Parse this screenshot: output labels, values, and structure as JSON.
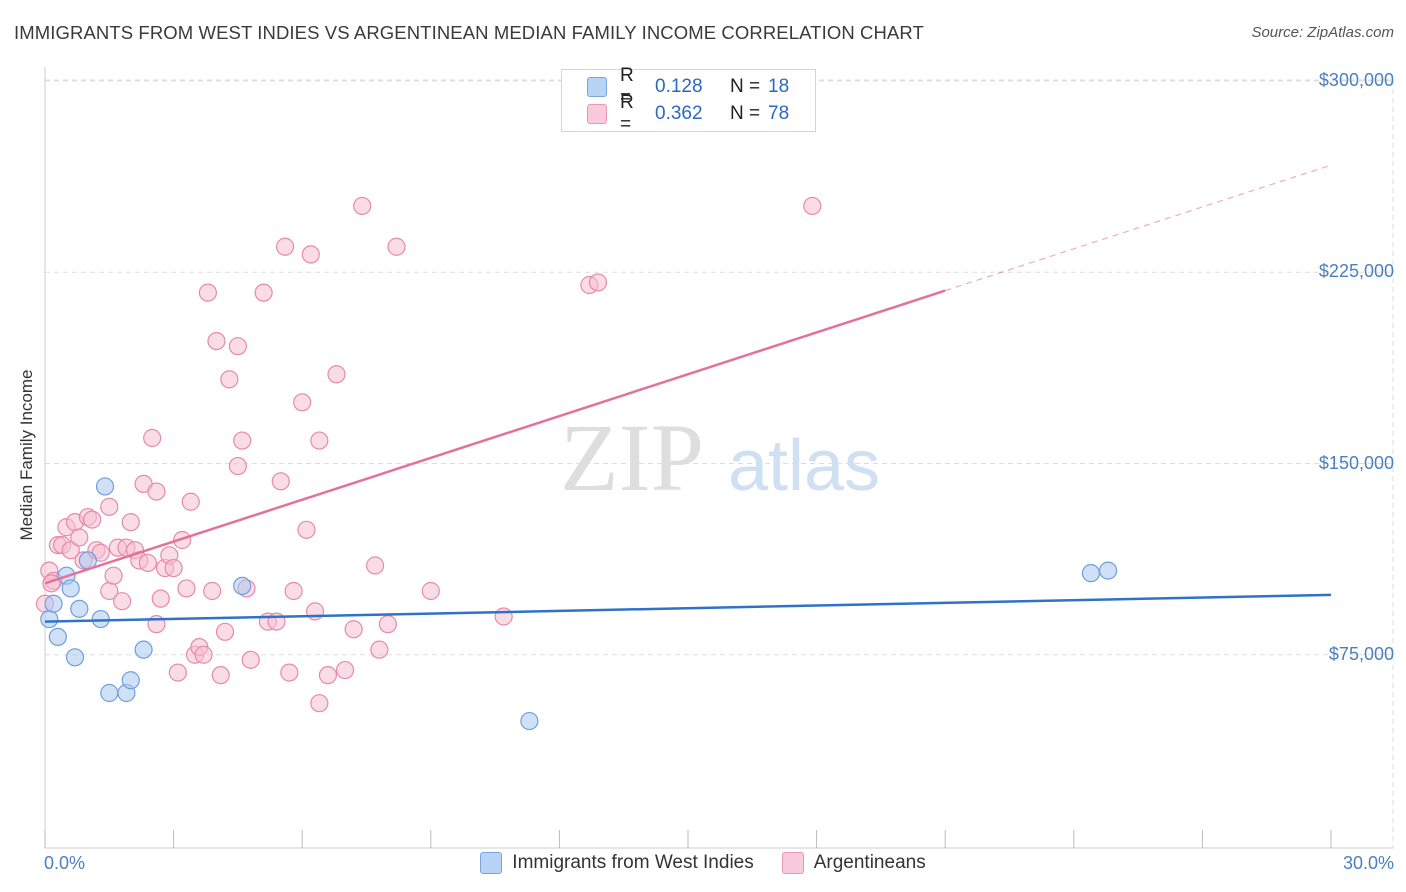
{
  "title": "IMMIGRANTS FROM WEST INDIES VS ARGENTINEAN MEDIAN FAMILY INCOME CORRELATION CHART",
  "source": "Source: ZipAtlas.com",
  "watermark": {
    "zip": "ZIP",
    "atlas": "atlas"
  },
  "legend_top": [
    {
      "r_label": "R =",
      "r_value": "0.128",
      "n_label": "N =",
      "n_value": "18"
    },
    {
      "r_label": "R =",
      "r_value": "0.362",
      "n_label": "N =",
      "n_value": "78"
    }
  ],
  "legend_bottom": [
    {
      "label": "Immigrants from West Indies"
    },
    {
      "label": "Argentineans"
    }
  ],
  "colors": {
    "blue_fill": "#a9c8f0",
    "blue_stroke": "#6f9fdc",
    "blue_line": "#2f72c8",
    "pink_fill": "#f6bfd2",
    "pink_stroke": "#e68aab",
    "pink_line": "#e4719a",
    "grid": "#dddddd",
    "tick_text": "#4a7fc1"
  },
  "chart_data": {
    "type": "scatter",
    "title": "IMMIGRANTS FROM WEST INDIES VS ARGENTINEAN MEDIAN FAMILY INCOME CORRELATION CHART",
    "xlabel": "",
    "ylabel": "Median Family Income",
    "xlim": [
      0,
      30
    ],
    "ylim": [
      0,
      300000
    ],
    "x_tick_labels": [
      "0.0%",
      "30.0%"
    ],
    "y_ticks": [
      75000,
      150000,
      225000,
      300000
    ],
    "y_tick_labels": [
      "$75,000",
      "$150,000",
      "$225,000",
      "$300,000"
    ],
    "series": [
      {
        "name": "Immigrants from West Indies",
        "color": "blue",
        "trend": {
          "x": [
            0.0,
            30.0
          ],
          "y": [
            88000,
            98500
          ],
          "dashed_from": null
        },
        "points": [
          [
            0.1,
            89000
          ],
          [
            0.2,
            95000
          ],
          [
            0.3,
            82000
          ],
          [
            0.5,
            106000
          ],
          [
            0.6,
            101000
          ],
          [
            0.7,
            74000
          ],
          [
            0.8,
            93000
          ],
          [
            1.0,
            112000
          ],
          [
            1.3,
            89000
          ],
          [
            1.4,
            141000
          ],
          [
            1.5,
            60000
          ],
          [
            1.9,
            60000
          ],
          [
            2.0,
            65000
          ],
          [
            2.3,
            77000
          ],
          [
            4.6,
            102000
          ],
          [
            11.3,
            49000
          ],
          [
            24.4,
            107000
          ],
          [
            24.8,
            108000
          ]
        ]
      },
      {
        "name": "Argentineans",
        "color": "pink",
        "trend": {
          "x": [
            0.0,
            30.0
          ],
          "y": [
            103000,
            267000
          ],
          "dashed_from": 21.0
        },
        "points": [
          [
            0.0,
            95000
          ],
          [
            0.1,
            108000
          ],
          [
            0.2,
            104000
          ],
          [
            0.3,
            118000
          ],
          [
            0.4,
            118000
          ],
          [
            0.5,
            125000
          ],
          [
            0.6,
            116000
          ],
          [
            0.7,
            127000
          ],
          [
            0.8,
            121000
          ],
          [
            0.9,
            112000
          ],
          [
            1.0,
            129000
          ],
          [
            1.1,
            128000
          ],
          [
            1.2,
            116000
          ],
          [
            1.3,
            115000
          ],
          [
            1.5,
            100000
          ],
          [
            1.5,
            133000
          ],
          [
            1.6,
            106000
          ],
          [
            1.7,
            117000
          ],
          [
            1.8,
            96000
          ],
          [
            1.9,
            117000
          ],
          [
            2.0,
            127000
          ],
          [
            2.1,
            116000
          ],
          [
            2.2,
            112000
          ],
          [
            2.3,
            142000
          ],
          [
            2.4,
            111000
          ],
          [
            2.5,
            160000
          ],
          [
            2.6,
            87000
          ],
          [
            2.6,
            139000
          ],
          [
            2.7,
            97000
          ],
          [
            2.8,
            109000
          ],
          [
            2.9,
            114000
          ],
          [
            3.0,
            109000
          ],
          [
            3.1,
            68000
          ],
          [
            3.2,
            120000
          ],
          [
            3.3,
            101000
          ],
          [
            3.4,
            135000
          ],
          [
            3.5,
            75000
          ],
          [
            3.6,
            78000
          ],
          [
            3.7,
            75000
          ],
          [
            3.8,
            217000
          ],
          [
            3.9,
            100000
          ],
          [
            4.0,
            198000
          ],
          [
            4.1,
            67000
          ],
          [
            4.2,
            84000
          ],
          [
            4.3,
            183000
          ],
          [
            4.5,
            196000
          ],
          [
            4.5,
            149000
          ],
          [
            4.6,
            159000
          ],
          [
            4.7,
            101000
          ],
          [
            4.8,
            73000
          ],
          [
            5.1,
            217000
          ],
          [
            5.2,
            88000
          ],
          [
            5.4,
            88000
          ],
          [
            5.5,
            143000
          ],
          [
            5.6,
            235000
          ],
          [
            5.7,
            68000
          ],
          [
            5.8,
            100000
          ],
          [
            6.0,
            174000
          ],
          [
            6.1,
            124000
          ],
          [
            6.2,
            232000
          ],
          [
            6.3,
            92000
          ],
          [
            6.4,
            159000
          ],
          [
            6.4,
            56000
          ],
          [
            6.6,
            67000
          ],
          [
            6.8,
            185000
          ],
          [
            7.0,
            69000
          ],
          [
            7.2,
            85000
          ],
          [
            7.4,
            251000
          ],
          [
            7.7,
            110000
          ],
          [
            7.8,
            77000
          ],
          [
            8.0,
            87000
          ],
          [
            8.2,
            235000
          ],
          [
            9.0,
            100000
          ],
          [
            10.7,
            90000
          ],
          [
            12.7,
            220000
          ],
          [
            12.9,
            221000
          ],
          [
            17.9,
            251000
          ],
          [
            0.15,
            103000
          ]
        ]
      }
    ]
  }
}
